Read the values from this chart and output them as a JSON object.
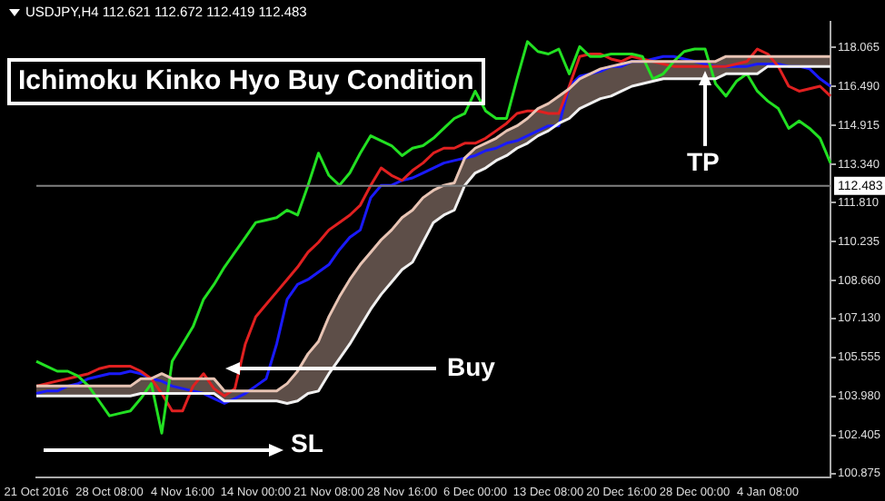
{
  "chart_data": {
    "type": "line",
    "title": "Ichimoku Kinko Hyo Buy Condition",
    "annotations": [
      "USDJPY,H4 112.621 112.672 112.419 112.483",
      "Buy",
      {
        "text": "TP",
        "y": 117.3
      },
      "SL"
    ],
    "categories": [
      "21 Oct 2016",
      null,
      null,
      null,
      null,
      null,
      null,
      "28 Oct 08:00",
      null,
      null,
      null,
      null,
      null,
      null,
      "4 Nov 16:00",
      null,
      null,
      null,
      null,
      null,
      null,
      "14 Nov 00:00",
      null,
      null,
      null,
      null,
      null,
      null,
      "21 Nov 08:00",
      null,
      null,
      null,
      null,
      null,
      null,
      "28 Nov 16:00",
      null,
      null,
      null,
      null,
      null,
      null,
      "6 Dec 00:00",
      null,
      null,
      null,
      null,
      null,
      null,
      "13 Dec 08:00",
      null,
      null,
      null,
      null,
      null,
      null,
      "20 Dec 16:00",
      null,
      null,
      null,
      null,
      null,
      null,
      "28 Dec 00:00",
      null,
      null,
      null,
      null,
      null,
      null,
      "4 Jan 08:00",
      null,
      null,
      null,
      null,
      null,
      null
    ],
    "series": [
      {
        "color": "#f0f0f0",
        "values": [
          104.0,
          104.0,
          104.0,
          104.0,
          104.0,
          104.0,
          104.0,
          104.0,
          104.0,
          104.0,
          104.1,
          104.1,
          104.1,
          104.1,
          104.1,
          104.1,
          104.1,
          104.1,
          103.8,
          103.8,
          103.8,
          103.8,
          103.8,
          103.8,
          103.7,
          103.8,
          104.1,
          104.2,
          104.9,
          105.5,
          106.1,
          106.8,
          107.5,
          108.1,
          108.6,
          109.1,
          109.4,
          110.2,
          111.0,
          111.3,
          111.5,
          112.5,
          113.0,
          113.2,
          113.5,
          113.7,
          114.0,
          114.2,
          114.5,
          114.7,
          115.0,
          115.2,
          115.6,
          115.8,
          116.0,
          116.1,
          116.3,
          116.5,
          116.6,
          116.7,
          116.8,
          116.8,
          116.8,
          116.8,
          116.8,
          116.8,
          117.0,
          117.0,
          117.0,
          117.0,
          117.3,
          117.3,
          117.3,
          117.3,
          117.3,
          117.3,
          117.3
        ]
      },
      {
        "color": "#e8c4b4",
        "values": [
          104.4,
          104.4,
          104.4,
          104.4,
          104.4,
          104.4,
          104.4,
          104.4,
          104.4,
          104.4,
          104.7,
          104.7,
          104.9,
          104.7,
          104.7,
          104.7,
          104.7,
          104.7,
          104.2,
          104.2,
          104.2,
          104.2,
          104.2,
          104.2,
          104.5,
          105.0,
          105.7,
          106.2,
          107.2,
          108.0,
          108.7,
          109.3,
          109.8,
          110.3,
          110.7,
          111.2,
          111.5,
          112.0,
          112.3,
          112.5,
          112.6,
          113.6,
          114.0,
          114.2,
          114.4,
          114.7,
          114.9,
          115.2,
          115.6,
          115.8,
          116.1,
          116.4,
          116.8,
          117.0,
          117.2,
          117.3,
          117.4,
          117.5,
          117.5,
          117.5,
          117.5,
          117.5,
          117.5,
          117.5,
          117.5,
          117.5,
          117.7,
          117.7,
          117.7,
          117.7,
          117.7,
          117.7,
          117.7,
          117.7,
          117.7,
          117.7,
          117.7
        ],
        "upper": [
          104.4,
          104.4,
          104.4,
          104.4,
          104.4,
          104.4,
          104.4,
          104.4,
          104.4,
          104.4,
          104.7,
          104.7,
          104.9,
          104.7,
          104.7,
          104.7,
          104.7,
          104.7,
          104.2,
          104.2,
          104.2,
          104.2,
          104.2,
          104.2,
          104.5,
          105.0,
          105.7,
          106.2,
          107.2,
          108.0,
          108.7,
          109.3,
          109.8,
          110.3,
          110.7,
          111.2,
          111.5,
          112.0,
          112.3,
          112.5,
          112.6,
          113.6,
          114.0,
          114.2,
          114.4,
          114.7,
          114.9,
          115.2,
          115.6,
          115.8,
          116.1,
          116.4,
          116.8,
          117.0,
          117.2,
          117.3,
          117.4,
          117.5,
          117.5,
          117.5,
          117.5,
          117.5,
          117.5,
          117.5,
          117.5,
          117.5,
          117.7,
          117.7,
          117.7,
          117.7,
          117.7,
          117.7,
          117.7,
          117.7,
          117.7,
          117.7,
          117.7
        ],
        "lower": [
          104.0,
          104.0,
          104.0,
          104.0,
          104.0,
          104.0,
          104.0,
          104.0,
          104.0,
          104.0,
          104.1,
          104.1,
          104.1,
          104.1,
          104.1,
          104.1,
          104.1,
          104.1,
          103.8,
          103.8,
          103.8,
          103.8,
          103.8,
          103.8,
          103.7,
          103.8,
          104.1,
          104.2,
          104.9,
          105.5,
          106.1,
          106.8,
          107.5,
          108.1,
          108.6,
          109.1,
          109.4,
          110.2,
          111.0,
          111.3,
          111.5,
          112.5,
          113.0,
          113.2,
          113.5,
          113.7,
          114.0,
          114.2,
          114.5,
          114.7,
          115.0,
          115.2,
          115.6,
          115.8,
          116.0,
          116.1,
          116.3,
          116.5,
          116.6,
          116.7,
          116.8,
          116.8,
          116.8,
          116.8,
          116.8,
          116.8,
          117.0,
          117.0,
          117.0,
          117.0,
          117.3,
          117.3,
          117.3,
          117.3,
          117.3,
          117.3,
          117.3
        ]
      },
      {
        "color": "#22e022",
        "values": [
          105.4,
          105.2,
          105.0,
          105.0,
          104.8,
          104.4,
          103.8,
          103.2,
          103.3,
          103.4,
          103.9,
          104.5,
          102.5,
          105.4,
          106.1,
          106.8,
          107.9,
          108.5,
          109.2,
          109.8,
          110.4,
          111.0,
          111.1,
          111.2,
          111.5,
          111.3,
          112.5,
          113.8,
          112.9,
          112.5,
          113.0,
          113.8,
          114.5,
          114.3,
          114.1,
          113.7,
          114.0,
          114.1,
          114.4,
          114.8,
          115.2,
          115.4,
          116.3,
          115.5,
          115.2,
          115.2,
          116.8,
          118.3,
          117.9,
          117.8,
          118.0,
          117.0,
          118.1,
          117.7,
          117.7,
          117.8,
          117.8,
          117.8,
          117.7,
          116.8,
          117.0,
          117.5,
          117.9,
          118.0,
          118.0,
          116.6,
          116.1,
          116.7,
          117.0,
          116.3,
          115.9,
          115.6,
          114.8,
          115.1,
          114.8,
          114.4,
          113.4
        ]
      },
      {
        "color": "#e02020",
        "values": [
          104.4,
          104.5,
          104.6,
          104.7,
          104.8,
          104.9,
          105.1,
          105.2,
          105.2,
          105.2,
          105.0,
          104.7,
          104.1,
          103.4,
          103.4,
          104.4,
          104.9,
          104.3,
          104.0,
          104.3,
          106.1,
          107.2,
          107.7,
          108.2,
          108.7,
          109.2,
          109.8,
          110.2,
          110.7,
          111.0,
          111.3,
          111.7,
          112.5,
          113.2,
          112.9,
          112.7,
          113.1,
          113.4,
          113.8,
          114.0,
          114.0,
          114.2,
          114.2,
          114.4,
          114.7,
          115.0,
          115.4,
          115.5,
          115.5,
          115.4,
          115.4,
          116.5,
          117.7,
          117.8,
          117.8,
          117.6,
          117.5,
          117.7,
          117.6,
          117.5,
          117.4,
          117.3,
          117.3,
          117.3,
          117.3,
          117.3,
          117.3,
          117.4,
          117.5,
          118.0,
          117.8,
          117.3,
          116.5,
          116.3,
          116.4,
          116.5,
          116.1
        ]
      },
      {
        "color": "#1a1aff",
        "values": [
          104.1,
          104.2,
          104.2,
          104.4,
          104.5,
          104.7,
          104.8,
          104.9,
          104.9,
          105.0,
          104.9,
          104.7,
          104.6,
          104.4,
          104.3,
          104.2,
          104.1,
          103.9,
          103.7,
          103.9,
          104.1,
          104.4,
          104.7,
          106.1,
          107.9,
          108.5,
          108.7,
          109.0,
          109.3,
          109.9,
          110.4,
          110.7,
          112.0,
          112.5,
          112.5,
          112.7,
          112.8,
          113.0,
          113.2,
          113.4,
          113.5,
          113.6,
          113.7,
          113.9,
          114.0,
          114.2,
          114.3,
          114.5,
          114.7,
          114.9,
          114.9,
          116.5,
          116.9,
          117.0,
          117.1,
          117.3,
          117.3,
          117.5,
          117.5,
          117.6,
          117.7,
          117.7,
          117.6,
          117.5,
          117.4,
          117.3,
          117.3,
          117.3,
          117.3,
          117.4,
          117.4,
          117.4,
          117.3,
          117.3,
          117.2,
          116.8,
          116.5
        ]
      }
    ],
    "ylim": [
      100.7,
      119.1
    ],
    "yticks": [
      100.875,
      102.405,
      {
        "value": 103.98,
        "label": "103.980"
      },
      105.555,
      {
        "value": 107.13,
        "label": "107.130"
      },
      {
        "value": 108.66,
        "label": "108.660"
      },
      110.235,
      {
        "value": 111.81,
        "label": "111.810"
      },
      {
        "value": 113.34,
        "label": "113.340"
      },
      114.915,
      {
        "value": 116.49,
        "label": "116.490"
      },
      118.065
    ],
    "ref_lines": [
      {
        "axis": "y",
        "value": 112.483,
        "label": "112.483",
        "color": "#808080"
      }
    ],
    "grid": false,
    "legend": false
  }
}
